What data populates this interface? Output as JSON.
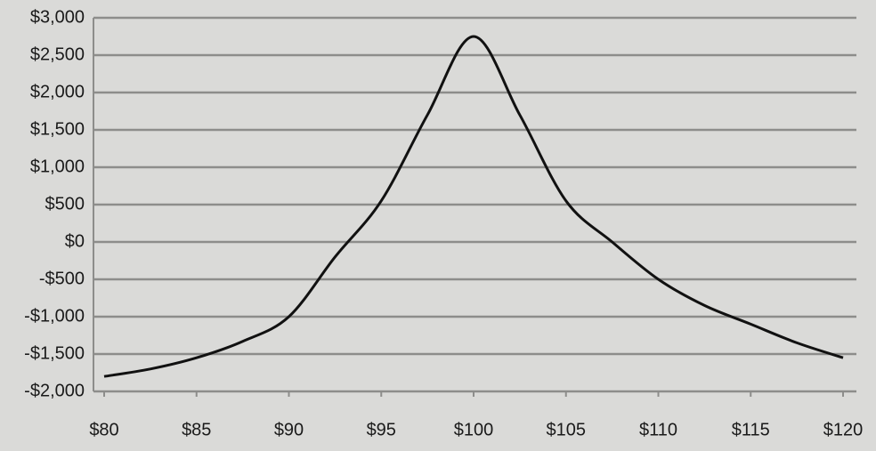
{
  "chart_data": {
    "type": "line",
    "x": [
      80,
      82.5,
      85,
      87.5,
      90,
      92.5,
      95,
      97.5,
      100,
      102.5,
      105,
      107.5,
      110,
      112.5,
      115,
      117.5,
      120
    ],
    "series": [
      {
        "color": "#111111",
        "values": [
          -1800,
          -1700,
          -1550,
          -1330,
          -1000,
          -200,
          550,
          1700,
          2750,
          1700,
          550,
          0,
          -500,
          -850,
          -1100,
          -1350,
          -1550
        ]
      }
    ],
    "xlim": [
      80,
      120
    ],
    "xticks": [
      {
        "value": 80,
        "label": "$80"
      },
      {
        "value": 85,
        "label": "$85"
      },
      {
        "value": 90,
        "label": "$90"
      },
      {
        "value": 95,
        "label": "$95"
      },
      {
        "value": 100,
        "label": "$100"
      },
      {
        "value": 105,
        "label": "$105"
      },
      {
        "value": 110,
        "label": "$110"
      },
      {
        "value": 115,
        "label": "$115"
      },
      {
        "value": 120,
        "label": "$120"
      }
    ],
    "ylim": [
      -2000,
      3000
    ],
    "yticks": [
      {
        "value": -2000,
        "label": "-$2,000"
      },
      {
        "value": -1500,
        "label": "-$1,500"
      },
      {
        "value": -1000,
        "label": "-$1,000"
      },
      {
        "value": -500,
        "label": "-$500"
      },
      {
        "value": 0,
        "label": "$0"
      },
      {
        "value": 500,
        "label": "$500"
      },
      {
        "value": 1000,
        "label": "$1,000"
      },
      {
        "value": 1500,
        "label": "$1,500"
      },
      {
        "value": 2000,
        "label": "$2,000"
      },
      {
        "value": 2500,
        "label": "$2,500"
      },
      {
        "value": 3000,
        "label": "$3,000"
      }
    ],
    "grid": true
  }
}
